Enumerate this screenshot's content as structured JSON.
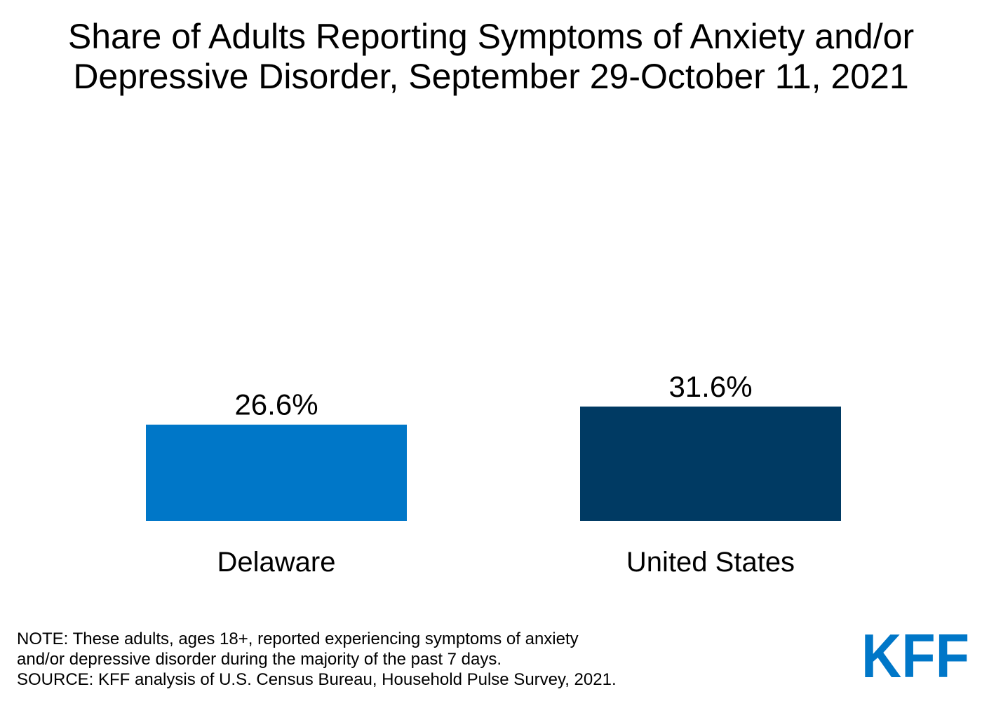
{
  "title_lines": [
    "Share of Adults Reporting Symptoms of Anxiety and/or",
    "Depressive Disorder, September 29-October 11, 2021"
  ],
  "chart_data": {
    "type": "bar",
    "title": "Share of Adults Reporting Symptoms of Anxiety and/or Depressive Disorder, September 29-October 11, 2021",
    "categories": [
      "Delaware",
      "United States"
    ],
    "values": [
      26.6,
      31.6
    ],
    "value_labels": [
      "26.6%",
      "31.6%"
    ],
    "colors": [
      "#0077C8",
      "#003A63"
    ],
    "xlabel": "",
    "ylabel": "",
    "ylim": [
      0,
      100
    ],
    "grid": false,
    "legend": "none"
  },
  "note_lines": [
    "NOTE: These adults, ages 18+, reported experiencing symptoms of anxiety",
    "and/or depressive disorder during the majority of the past 7 days.",
    "SOURCE: KFF analysis of U.S. Census Bureau, Household Pulse Survey, 2021."
  ],
  "logo": {
    "text": "KFF",
    "color": "#0077C8"
  }
}
